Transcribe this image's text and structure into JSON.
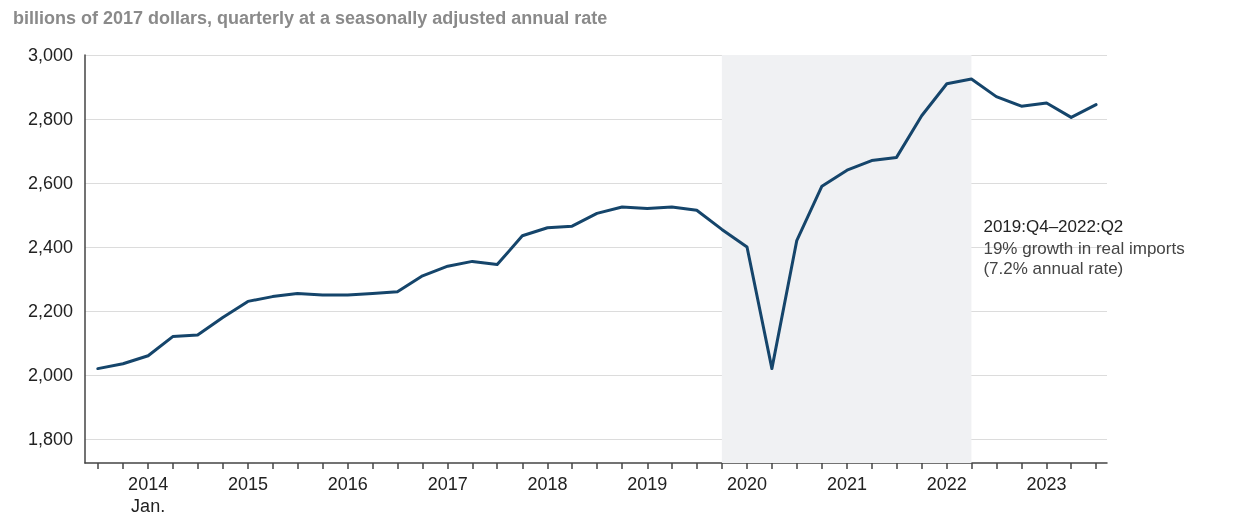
{
  "chart_data": {
    "type": "line",
    "ylabel": "billions of 2017 dollars, quarterly at a seasonally adjusted annual rate",
    "x": [
      "2013-07",
      "2013-10",
      "2014-01",
      "2014-04",
      "2014-07",
      "2014-10",
      "2015-01",
      "2015-04",
      "2015-07",
      "2015-10",
      "2016-01",
      "2016-04",
      "2016-07",
      "2016-10",
      "2017-01",
      "2017-04",
      "2017-07",
      "2017-10",
      "2018-01",
      "2018-04",
      "2018-07",
      "2018-10",
      "2019-01",
      "2019-04",
      "2019-07",
      "2019-10",
      "2020-01",
      "2020-04",
      "2020-07",
      "2020-10",
      "2021-01",
      "2021-04",
      "2021-07",
      "2021-10",
      "2022-01",
      "2022-04",
      "2022-07",
      "2022-10",
      "2023-01",
      "2023-04",
      "2023-07"
    ],
    "series": [
      {
        "color": "#15456b",
        "values": [
          2020,
          2035,
          2060,
          2120,
          2125,
          2180,
          2230,
          2245,
          2255,
          2250,
          2250,
          2255,
          2260,
          2310,
          2340,
          2355,
          2345,
          2435,
          2460,
          2465,
          2505,
          2525,
          2520,
          2525,
          2515,
          2455,
          2400,
          2020,
          2420,
          2590,
          2640,
          2670,
          2680,
          2810,
          2910,
          2925,
          2870,
          2840,
          2850,
          2805,
          2845
        ]
      }
    ],
    "xlim": [
      "2013-05-15",
      "2023-08-10"
    ],
    "xticks": [
      {
        "value": "2013-07",
        "label": null
      },
      {
        "value": "2013-10",
        "label": null
      },
      {
        "value": "2014-01",
        "label": "2014\nJan."
      },
      {
        "value": "2014-04",
        "label": null
      },
      {
        "value": "2014-07",
        "label": null
      },
      {
        "value": "2014-10",
        "label": null
      },
      {
        "value": "2015-01",
        "label": "2015"
      },
      {
        "value": "2015-04",
        "label": null
      },
      {
        "value": "2015-07",
        "label": null
      },
      {
        "value": "2015-10",
        "label": null
      },
      {
        "value": "2016-01",
        "label": "2016"
      },
      {
        "value": "2016-04",
        "label": null
      },
      {
        "value": "2016-07",
        "label": null
      },
      {
        "value": "2016-10",
        "label": null
      },
      {
        "value": "2017-01",
        "label": "2017"
      },
      {
        "value": "2017-04",
        "label": null
      },
      {
        "value": "2017-07",
        "label": null
      },
      {
        "value": "2017-10",
        "label": null
      },
      {
        "value": "2018-01",
        "label": "2018"
      },
      {
        "value": "2018-04",
        "label": null
      },
      {
        "value": "2018-07",
        "label": null
      },
      {
        "value": "2018-10",
        "label": null
      },
      {
        "value": "2019-01",
        "label": "2019"
      },
      {
        "value": "2019-04",
        "label": null
      },
      {
        "value": "2019-07",
        "label": null
      },
      {
        "value": "2019-10",
        "label": null
      },
      {
        "value": "2020-01",
        "label": "2020"
      },
      {
        "value": "2020-04",
        "label": null
      },
      {
        "value": "2020-07",
        "label": null
      },
      {
        "value": "2020-10",
        "label": null
      },
      {
        "value": "2021-01",
        "label": "2021"
      },
      {
        "value": "2021-04",
        "label": null
      },
      {
        "value": "2021-07",
        "label": null
      },
      {
        "value": "2021-10",
        "label": null
      },
      {
        "value": "2022-01",
        "label": "2022"
      },
      {
        "value": "2022-04",
        "label": null
      },
      {
        "value": "2022-07",
        "label": null
      },
      {
        "value": "2022-10",
        "label": null
      },
      {
        "value": "2023-01",
        "label": "2023"
      },
      {
        "value": "2023-04",
        "label": null
      },
      {
        "value": "2023-07",
        "label": null
      }
    ],
    "ylim": [
      1725,
      3000
    ],
    "yticks": [
      {
        "value": 1800,
        "label": "1,800"
      },
      {
        "value": 2000,
        "label": "2,000"
      },
      {
        "value": 2200,
        "label": "2,200"
      },
      {
        "value": 2400,
        "label": "2,400"
      },
      {
        "value": 2600,
        "label": "2,600"
      },
      {
        "value": 2800,
        "label": "2,800"
      },
      {
        "value": 3000,
        "label": "3,000"
      }
    ],
    "grid": "y",
    "marker": "none",
    "line_style": "solid",
    "bands": [
      {
        "axis": "x",
        "from": "2019-10",
        "to": "2022-04",
        "label": "2019:Q4–2022:Q2",
        "color": "#f0f1f3"
      }
    ],
    "annotations": [
      "19% growth in real imports (7.2% annual rate)"
    ]
  }
}
